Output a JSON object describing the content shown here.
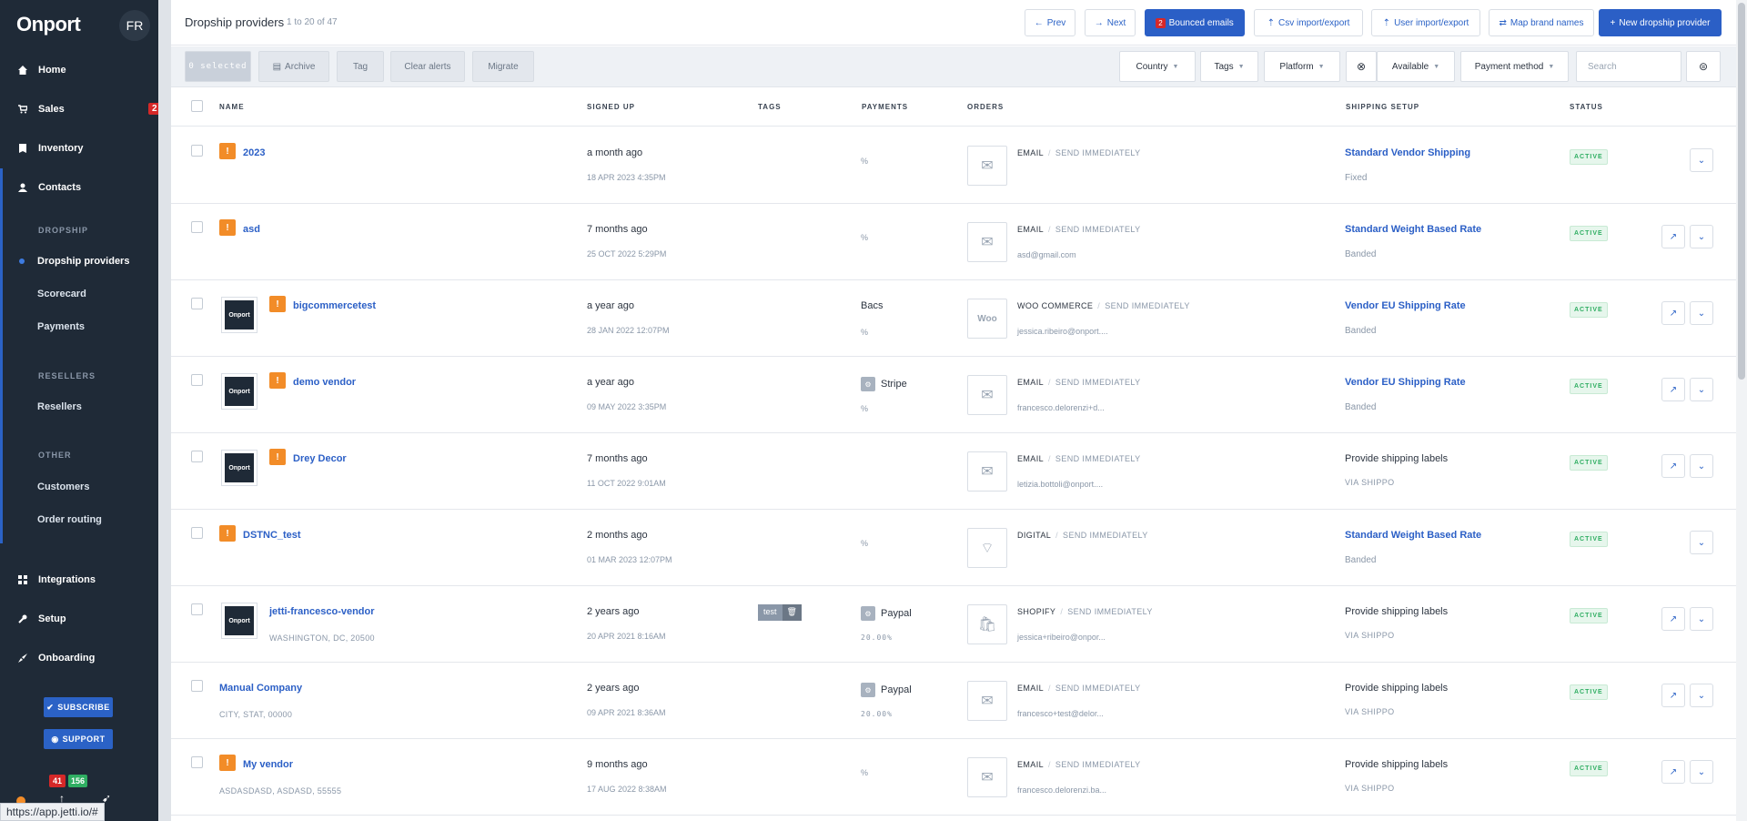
{
  "sidebar": {
    "brand": "Onport",
    "avatar": "FR",
    "nav": [
      {
        "label": "Home",
        "icon": "home-icon"
      },
      {
        "label": "Sales",
        "icon": "cart-icon",
        "badge": "2"
      },
      {
        "label": "Inventory",
        "icon": "book-icon"
      },
      {
        "label": "Contacts",
        "icon": "person-icon"
      }
    ],
    "groups": [
      {
        "heading": "DROPSHIP",
        "items": [
          "Dropship providers",
          "Scorecard",
          "Payments"
        ]
      },
      {
        "heading": "RESELLERS",
        "items": [
          "Resellers"
        ]
      },
      {
        "heading": "OTHER",
        "items": [
          "Customers",
          "Order routing"
        ]
      }
    ],
    "nav_bottom": [
      {
        "label": "Integrations",
        "icon": "grid-icon"
      },
      {
        "label": "Setup",
        "icon": "wrench-icon"
      },
      {
        "label": "Onboarding",
        "icon": "rocket-icon"
      }
    ],
    "subscribe_label": "SUBSCRIBE",
    "support_label": "SUPPORT",
    "badge_red": "41",
    "badge_green": "156",
    "url_tooltip": "https://app.jetti.io/#"
  },
  "header": {
    "title": "Dropship providers",
    "count": "1 to 20 of 47",
    "prev": "Prev",
    "next": "Next",
    "bounced_badge": "2",
    "bounced": "Bounced emails",
    "csv": "Csv import/export",
    "user": "User import/export",
    "map": "Map brand names",
    "new": "New dropship provider"
  },
  "toolbar": {
    "selected": "0 selected",
    "archive": "Archive",
    "tag": "Tag",
    "clear_alerts": "Clear alerts",
    "migrate": "Migrate",
    "country": "Country",
    "tags": "Tags",
    "platform": "Platform",
    "available": "Available",
    "payment_method": "Payment method",
    "search_placeholder": "Search"
  },
  "columns": [
    "NAME",
    "SIGNED UP",
    "TAGS",
    "PAYMENTS",
    "ORDERS",
    "SHIPPING SETUP",
    "STATUS"
  ],
  "rows": [
    {
      "name": "2023",
      "addr": "",
      "signed": "a month ago",
      "date": "18 APR 2023 4:35PM",
      "pay": "",
      "pct": "%",
      "ord_type": "EMAIL",
      "send": "SEND IMMEDIATELY",
      "email": "",
      "ship": "Standard Vendor Shipping",
      "ship_sub": "Fixed",
      "status": "ACTIVE"
    },
    {
      "name": "asd",
      "addr": "",
      "signed": "7 months ago",
      "date": "25 OCT 2022 5:29PM",
      "pay": "",
      "pct": "%",
      "ord_type": "EMAIL",
      "send": "SEND IMMEDIATELY",
      "email": "asd@gmail.com",
      "ship": "Standard Weight Based Rate",
      "ship_sub": "Banded",
      "status": "ACTIVE"
    },
    {
      "name": "bigcommercetest",
      "addr": "",
      "signed": "a year ago",
      "date": "28 JAN 2022 12:07PM",
      "pay": "Bacs",
      "pct": "%",
      "ord_type": "WOO COMMERCE",
      "send": "SEND IMMEDIATELY",
      "email": "jessica.ribeiro@onport....",
      "ship": "Vendor EU Shipping Rate",
      "ship_sub": "Banded",
      "status": "ACTIVE"
    },
    {
      "name": "demo vendor",
      "addr": "",
      "signed": "a year ago",
      "date": "09 MAY 2022 3:35PM",
      "pay": "Stripe",
      "pct": "%",
      "ord_type": "EMAIL",
      "send": "SEND IMMEDIATELY",
      "email": "francesco.delorenzi+d...",
      "ship": "Vendor EU Shipping Rate",
      "ship_sub": "Banded",
      "status": "ACTIVE"
    },
    {
      "name": "Drey Decor",
      "addr": "",
      "signed": "7 months ago",
      "date": "11 OCT 2022 9:01AM",
      "pay": "",
      "pct": "",
      "ord_type": "EMAIL",
      "send": "SEND IMMEDIATELY",
      "email": "letizia.bottoli@onport....",
      "ship": "Provide shipping labels",
      "ship_sub": "VIA SHIPPO",
      "status": "ACTIVE"
    },
    {
      "name": "DSTNC_test",
      "addr": "",
      "signed": "2 months ago",
      "date": "01 MAR 2023 12:07PM",
      "pay": "",
      "pct": "%",
      "ord_type": "DIGITAL",
      "send": "SEND IMMEDIATELY",
      "email": "",
      "ship": "Standard Weight Based Rate",
      "ship_sub": "Banded",
      "status": "ACTIVE"
    },
    {
      "name": "jetti-francesco-vendor",
      "addr": "WASHINGTON, DC, 20500",
      "signed": "2 years ago",
      "date": "20 APR 2021 8:16AM",
      "tag": "test",
      "pay": "Paypal",
      "pct": "20.00%",
      "ord_type": "SHOPIFY",
      "send": "SEND IMMEDIATELY",
      "email": "jessica+ribeiro@onpor...",
      "ship": "Provide shipping labels",
      "ship_sub": "VIA SHIPPO",
      "status": "ACTIVE"
    },
    {
      "name": "Manual Company",
      "addr": "CITY, STAT, 00000",
      "signed": "2 years ago",
      "date": "09 APR 2021 8:36AM",
      "pay": "Paypal",
      "pct": "20.00%",
      "ord_type": "EMAIL",
      "send": "SEND IMMEDIATELY",
      "email": "francesco+test@delor...",
      "ship": "Provide shipping labels",
      "ship_sub": "VIA SHIPPO",
      "status": "ACTIVE"
    },
    {
      "name": "My vendor",
      "addr": "ASDASDASD, ASDASD, 55555",
      "signed": "9 months ago",
      "date": "17 AUG 2022 8:38AM",
      "pay": "",
      "pct": "%",
      "ord_type": "EMAIL",
      "send": "SEND IMMEDIATELY",
      "email": "francesco.delorenzi.ba...",
      "ship": "Provide shipping labels",
      "ship_sub": "VIA SHIPPO",
      "status": "ACTIVE"
    }
  ],
  "logo_text": "Onport"
}
